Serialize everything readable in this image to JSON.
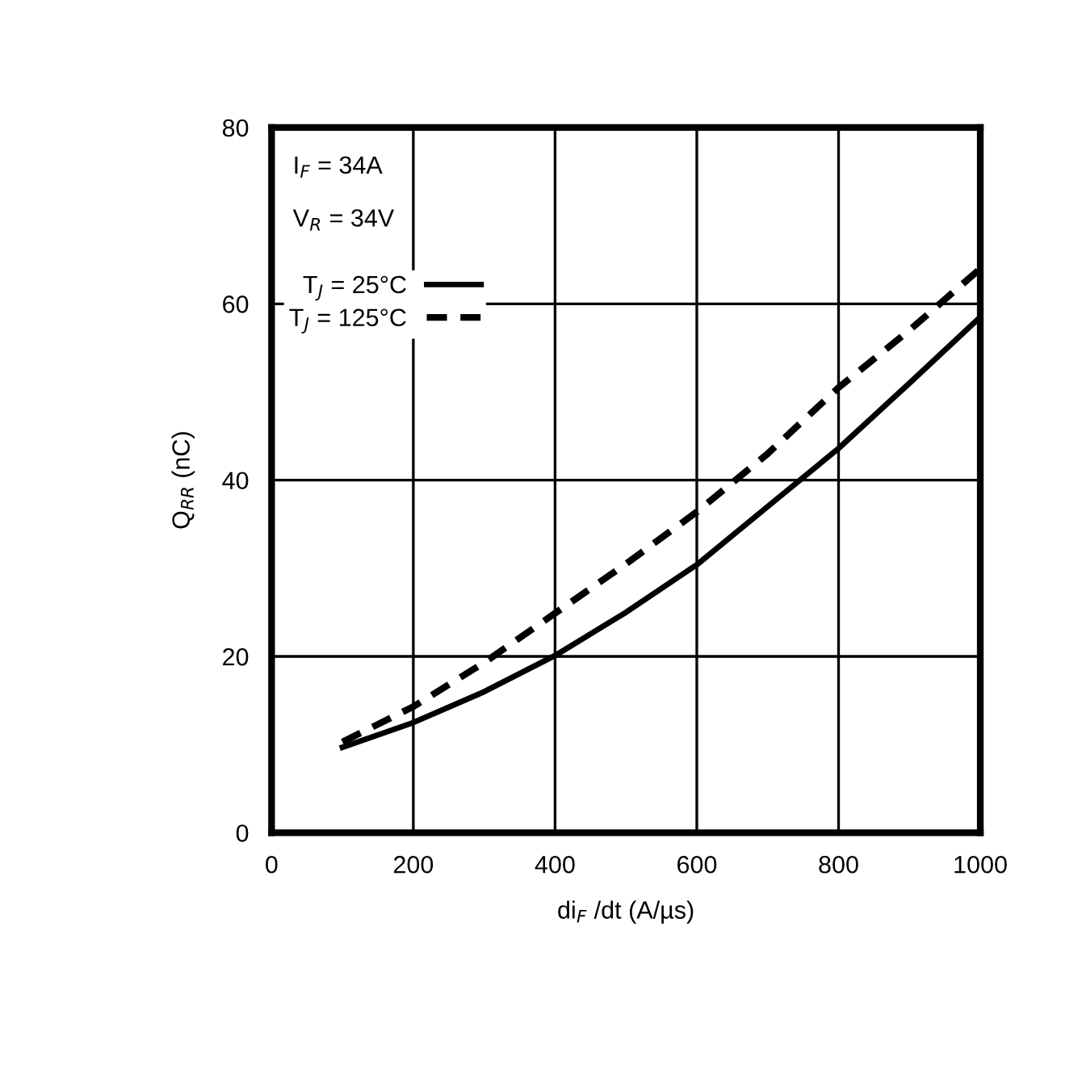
{
  "chart_data": {
    "type": "line",
    "xlabel": "di$_{F}$ /dt (A/µs)",
    "ylabel": "Q$_{RR}$ (nC)",
    "x": [
      100,
      200,
      300,
      400,
      500,
      600,
      700,
      800,
      900,
      1000
    ],
    "series": [
      {
        "name": "T$_{J}$ = 25°C",
        "color": "#000000",
        "line_style": "solid",
        "values": [
          9.7,
          12.5,
          16,
          20.1,
          25,
          30.4,
          37,
          43.6,
          51,
          58.5
        ]
      },
      {
        "name": "T$_{J}$ = 125°C",
        "color": "#000000",
        "line_style": "dashed",
        "values": [
          10.3,
          14.3,
          19.3,
          24.9,
          30.5,
          36.4,
          43,
          50.5,
          57,
          64
        ]
      }
    ],
    "annotations": [
      "I$_{F}$ = 34A",
      "V$_{R}$ = 34V"
    ],
    "xlim": [
      0,
      1000
    ],
    "ylim": [
      0,
      80
    ],
    "xticks": [
      0,
      200,
      400,
      600,
      800,
      1000
    ],
    "yticks": [
      0,
      20,
      40,
      60,
      80
    ],
    "grid": true,
    "legend": "top left",
    "marker": "none"
  }
}
